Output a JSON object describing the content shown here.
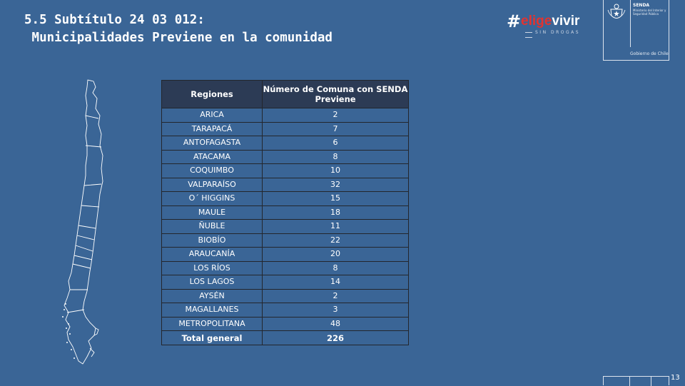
{
  "header": {
    "title_line1": "5.5 Subtítulo 24 03 012:",
    "title_line2": " Municipalidades Previene en la comunidad"
  },
  "brand": {
    "hash": "#",
    "elige": "elige",
    "vivir": "vivir",
    "tagline": "SIN DROGAS",
    "color_red": "#e3332f"
  },
  "gov": {
    "senda": "SENDA",
    "ministry": "Ministerio del Interior y Seguridad Pública",
    "gobierno": "Gobierno de Chile"
  },
  "table": {
    "col1_header": "Regiones",
    "col2_header": "Número de Comuna con SENDA Previene",
    "rows": [
      {
        "region": "ARICA",
        "value": "2"
      },
      {
        "region": "TARAPACÁ",
        "value": "7"
      },
      {
        "region": "ANTOFAGASTA",
        "value": "6"
      },
      {
        "region": "ATACAMA",
        "value": "8"
      },
      {
        "region": "COQUIMBO",
        "value": "10"
      },
      {
        "region": "VALPARAÍSO",
        "value": "32"
      },
      {
        "region": "O´ HIGGINS",
        "value": "15"
      },
      {
        "region": "MAULE",
        "value": "18"
      },
      {
        "region": "ÑUBLE",
        "value": "11"
      },
      {
        "region": "BIOBÍO",
        "value": "22"
      },
      {
        "region": "ARAUCANÍA",
        "value": "20"
      },
      {
        "region": "LOS RÍOS",
        "value": "8"
      },
      {
        "region": "LOS LAGOS",
        "value": "14"
      },
      {
        "region": "AYSÉN",
        "value": "2"
      },
      {
        "region": "MAGALLANES",
        "value": "3"
      },
      {
        "region": "METROPOLITANA",
        "value": "48"
      }
    ],
    "total_label": "Total general",
    "total_value": "226"
  },
  "footer": {
    "page_number": "13"
  },
  "colors": {
    "background": "#3a6596",
    "table_header": "#2c3b55"
  }
}
